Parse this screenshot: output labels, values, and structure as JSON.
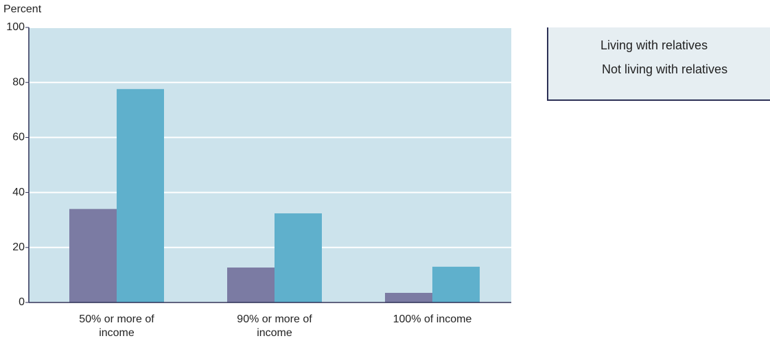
{
  "chart_data": {
    "type": "bar",
    "y_label": "Percent",
    "categories": [
      "50% or more of income",
      "90% or more of income",
      "100% of income"
    ],
    "series": [
      {
        "name": "Living with relatives",
        "color": "#7b7ba3",
        "values": [
          34,
          12.7,
          3.5
        ]
      },
      {
        "name": "Not living with relatives",
        "color": "#5fb0cc",
        "values": [
          77.6,
          32.4,
          13
        ]
      }
    ],
    "ylim": [
      0,
      100
    ],
    "yticks": [
      0,
      20,
      40,
      60,
      80,
      100
    ],
    "grid": true
  }
}
